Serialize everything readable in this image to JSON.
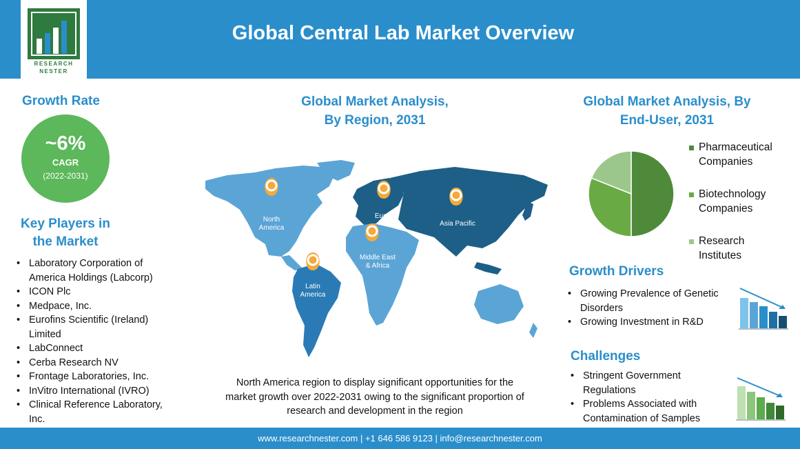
{
  "header": {
    "title": "Global Central Lab Market Overview",
    "logo_line1": "RESEARCH",
    "logo_line2": "NESTER"
  },
  "growth": {
    "title": "Growth Rate",
    "value": "~6%",
    "label": "CAGR",
    "period": "(2022-2031)"
  },
  "players": {
    "title_line1": "Key Players in",
    "title_line2": "the Market",
    "items": [
      "Laboratory Corporation of America Holdings (Labcorp)",
      "ICON Plc",
      "Medpace, Inc.",
      "Eurofins Scientific (Ireland) Limited",
      "LabConnect",
      "Cerba Research NV",
      "Frontage Laboratories, Inc.",
      "InVitro International (IVRO)",
      "Clinical Reference Laboratory, Inc."
    ]
  },
  "region": {
    "title_line1": "Global Market Analysis,",
    "title_line2": "By Region, 2031",
    "labels": {
      "north_america_1": "North",
      "north_america_2": "America",
      "europe": "Europe",
      "asia_pacific": "Asia Pacific",
      "mea_1": "Middle East",
      "mea_2": "& Africa",
      "latam_1": "Latin",
      "latam_2": "America"
    },
    "description": "North America region to display significant opportunities for the market growth over 2022-2031  owing to the significant proportion of research and development in the region"
  },
  "end_user": {
    "title_line1": "Global Market Analysis, By",
    "title_line2": "End-User, 2031",
    "legend": [
      {
        "line1": "Pharmaceutical",
        "line2": "Companies",
        "color": "#4e8a3a"
      },
      {
        "line1": "Biotechnology",
        "line2": "Companies",
        "color": "#6aaa45"
      },
      {
        "line1": "Research",
        "line2": "Institutes",
        "color": "#9bc88a"
      }
    ]
  },
  "chart_data": {
    "type": "pie",
    "categories": [
      "Pharmaceutical Companies",
      "Biotechnology Companies",
      "Research Institutes"
    ],
    "values": [
      50,
      31,
      19
    ],
    "colors": [
      "#4e8a3a",
      "#6aaa45",
      "#9bc88a"
    ]
  },
  "drivers": {
    "title": "Growth Drivers",
    "items": [
      "Growing Prevalence of Genetic Disorders",
      "Growing Investment in R&D"
    ]
  },
  "challenges": {
    "title": "Challenges",
    "items": [
      "Stringent Government Regulations",
      "Problems Associated with Contamination of Samples"
    ]
  },
  "footer": {
    "text": "www.researchnester.com  | +1 646 586 9123 | info@researchnester.com"
  },
  "colors": {
    "brand_blue": "#2a8ecb",
    "cagr_green": "#5cb85a",
    "map_light": "#5ba4d6",
    "map_dark": "#1d5f86",
    "pin_orange": "#f3a93c"
  }
}
